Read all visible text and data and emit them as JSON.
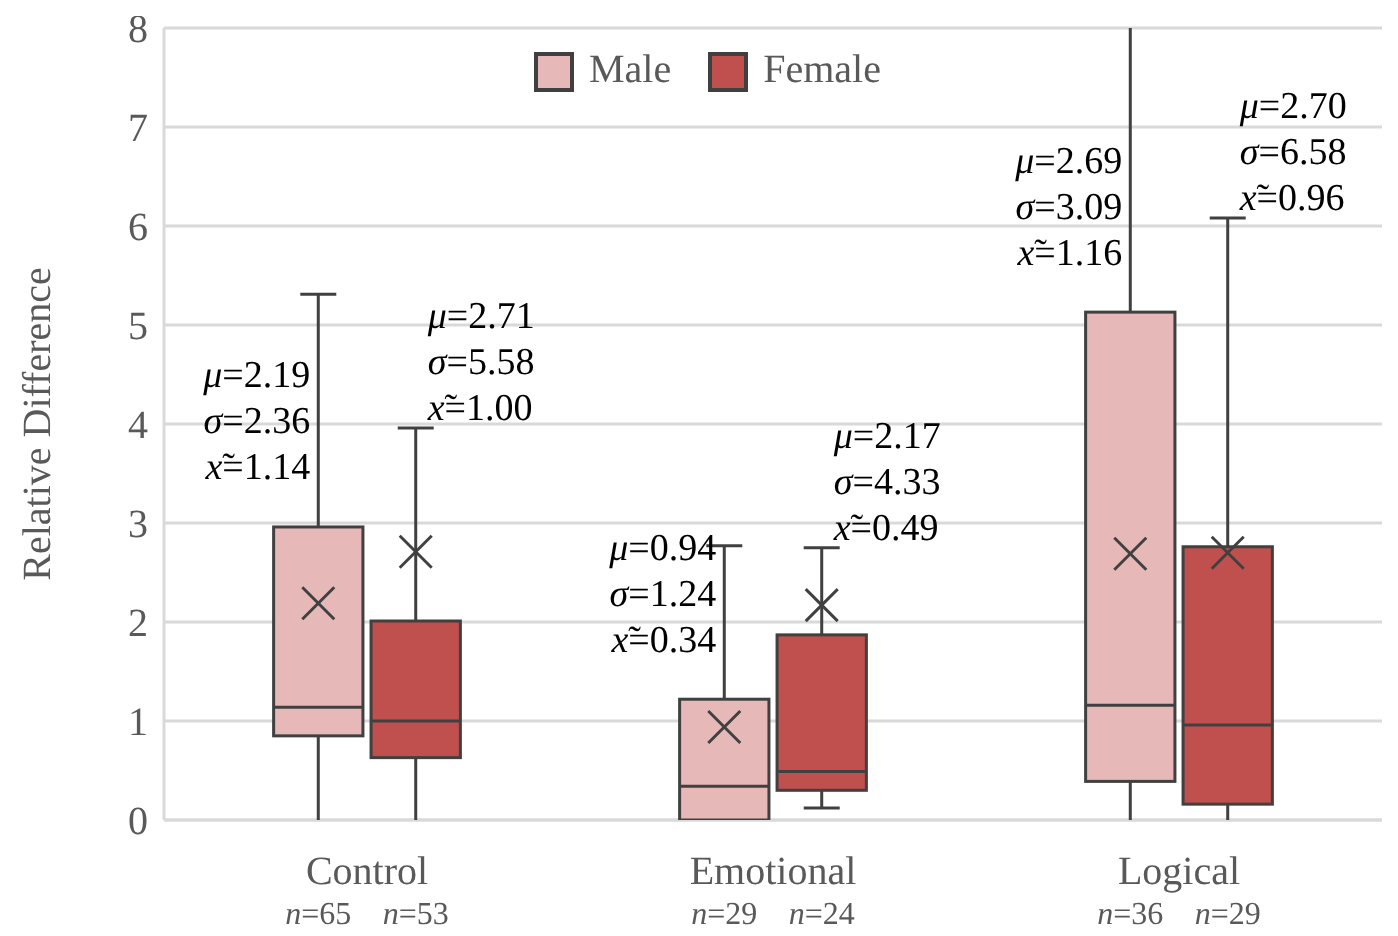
{
  "chart_data": {
    "type": "box",
    "ylabel": "Relative Difference",
    "categories": [
      "Control",
      "Emotional",
      "Logical"
    ],
    "ylim": [
      0,
      8
    ],
    "yticks": [
      0,
      1,
      2,
      3,
      4,
      5,
      6,
      7,
      8
    ],
    "grid": "y",
    "legend": "top",
    "series": [
      {
        "name": "Male",
        "color": "#e6b8b7",
        "boxes": [
          {
            "low": 0,
            "q1": 0.85,
            "median": 1.14,
            "q3": 2.96,
            "high": 5.31,
            "mean": 2.19
          },
          {
            "low": 0,
            "q1": 0,
            "median": 0.34,
            "q3": 1.22,
            "high": 2.77,
            "mean": 0.94
          },
          {
            "low": 0,
            "q1": 0.39,
            "median": 1.16,
            "q3": 5.13,
            "high": 8,
            "mean": 2.69
          }
        ]
      },
      {
        "name": "Female",
        "color": "#c0504d",
        "boxes": [
          {
            "low": 0,
            "q1": 0.63,
            "median": 1.0,
            "q3": 2.01,
            "high": 3.96,
            "mean": 2.71
          },
          {
            "low": 0.12,
            "q1": 0.3,
            "median": 0.49,
            "q3": 1.87,
            "high": 2.75,
            "mean": 2.17
          },
          {
            "low": 0,
            "q1": 0.16,
            "median": 0.96,
            "q3": 2.76,
            "high": 6.08,
            "mean": 2.7
          }
        ]
      }
    ],
    "annotations": [
      "μ=2.19\nσ=2.36\nx̃=1.14",
      "μ=2.71\nσ=5.58\nx̃=1.00",
      "μ=0.94\nσ=1.24\nx̃=0.34",
      "μ=2.17\nσ=4.33\nx̃=0.49",
      "μ=2.69\nσ=3.09\nx̃=1.16",
      "μ=2.70\nσ=6.58\nx̃=0.96",
      "n=65",
      "n=53",
      "n=29",
      "n=24",
      "n=36",
      "n=29"
    ]
  }
}
